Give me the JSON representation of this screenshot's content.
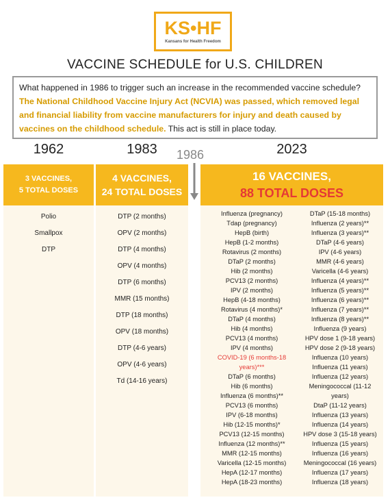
{
  "logo": {
    "text": "KS•HF",
    "subtitle": "Kansans for Health Freedom"
  },
  "title": "VACCINE SCHEDULE for U.S. CHILDREN",
  "intro": {
    "question": "What happened in 1986 to trigger such an increase in the recommended vaccine schedule?",
    "highlight": "The National Childhood Vaccine Injury Act (NCVIA) was passed, which removed legal and financial liability from vaccine manufacturers for injury and death caused by vaccines on the childhood schedule.",
    "closing": "This act is still in place today."
  },
  "marker": "1986",
  "columns": [
    {
      "year": "1962",
      "header": [
        "3 VACCINES,",
        "5 TOTAL DOSES"
      ],
      "items": [
        "Polio",
        "Smallpox",
        "DTP"
      ]
    },
    {
      "year": "1983",
      "header": [
        "4 VACCINES,",
        "24 TOTAL DOSES"
      ],
      "items": [
        "DTP (2 months)",
        "OPV (2 months)",
        "DTP (4 months)",
        "OPV (4 months)",
        "DTP (6 months)",
        "MMR (15 months)",
        "DTP (18 months)",
        "OPV (18 months)",
        "DTP (4-6 years)",
        "OPV (4-6 years)",
        "Td (14-16 years)"
      ]
    },
    {
      "year": "2023",
      "header": [
        "16 VACCINES,",
        "88 TOTAL DOSES"
      ],
      "items_left": [
        "Influenza (pregnancy)",
        "Tdap (pregnancy)",
        "HepB (birth)",
        "HepB (1-2 months)",
        "Rotavirus (2 months)",
        "DTaP (2 months)",
        "Hib (2 months)",
        "PCV13 (2 months)",
        "IPV (2 months)",
        "HepB (4-18 months)",
        "Rotavirus (4 months)*",
        "DTaP (4 months)",
        "Hib (4 months)",
        "PCV13 (4 months)",
        "IPV (4 months)",
        "COVID-19 (6 months-18 years)***",
        "DTaP (6 months)",
        "Hib (6 months)",
        "Influenza (6 months)**",
        "PCV13 (6 months)",
        "IPV (6-18 months)",
        "Hib (12-15 months)*",
        "PCV13 (12-15 months)",
        "Influenza (12 months)**",
        "MMR (12-15 months)",
        "Varicella (12-15 months)",
        "HepA (12-17 months)",
        "HepA (18-23 months)"
      ],
      "items_right": [
        "DTaP (15-18 months)",
        "Influenza (2 years)**",
        "Influenza (3 years)**",
        "DTaP (4-6 years)",
        "IPV (4-6 years)",
        "MMR (4-6 years)",
        "Varicella (4-6 years)",
        "Influenza (4 years)**",
        "Influenza (5 years)**",
        "Influenza (6 years)**",
        "Influenza (7 years)**",
        "Influenza (8 years)**",
        "Influenza (9 years)",
        "HPV dose 1 (9-18 years)",
        "HPV dose 2 (9-18 years)",
        "Influenza (10 years)",
        "Influenza (11 years)",
        "Influenza (12 years)",
        "Meningococcal (11-12 years)",
        "DtaP (11-12 years)",
        "Influenza (13 years)",
        "Influenza (14 years)",
        "HPV dose 3 (15-18 years)",
        "Influenza (15 years)",
        "Influenza (16 years)",
        "Meningococcal (16 years)",
        "Influenza (17 years)",
        "Influenza (18 years)"
      ]
    }
  ]
}
